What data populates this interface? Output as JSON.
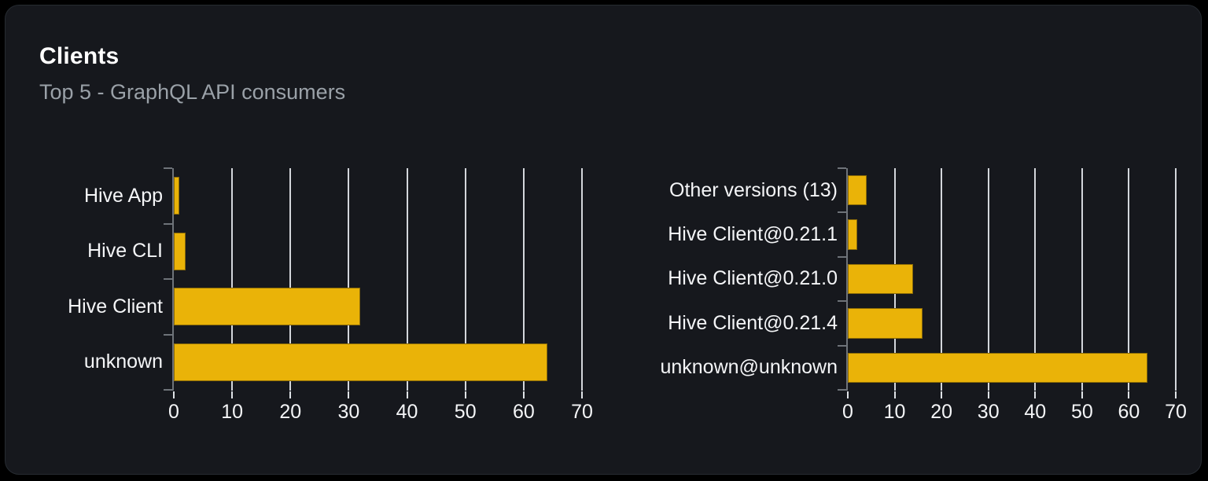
{
  "card": {
    "title": "Clients",
    "subtitle": "Top 5 - GraphQL API consumers"
  },
  "colors": {
    "bar": "#eab308",
    "bar_border": "#8a6a07",
    "card_background": "#16181d",
    "outer_background": "#000000",
    "gridline": "#e4e7eb",
    "axis": "#6e7379",
    "label_text": "#f4f5f7",
    "subtitle_text": "#9aa1a8",
    "title_text": "#ffffff"
  },
  "chart_data": [
    {
      "type": "bar",
      "orientation": "horizontal",
      "name": "clients-by-name",
      "categories": [
        "Hive App",
        "Hive CLI",
        "Hive Client",
        "unknown"
      ],
      "values": [
        1,
        2,
        32,
        64
      ],
      "title": "",
      "xlabel": "",
      "ylabel": "",
      "xlim": [
        0,
        70
      ],
      "xticks": [
        0,
        10,
        20,
        30,
        40,
        50,
        60,
        70
      ],
      "grid": true,
      "legend": false,
      "bar_color": "#eab308"
    },
    {
      "type": "bar",
      "orientation": "horizontal",
      "name": "clients-by-version",
      "categories": [
        "Other versions (13)",
        "Hive Client@0.21.1",
        "Hive Client@0.21.0",
        "Hive Client@0.21.4",
        "unknown@unknown"
      ],
      "values": [
        4,
        2,
        14,
        16,
        64
      ],
      "title": "",
      "xlabel": "",
      "ylabel": "",
      "xlim": [
        0,
        70
      ],
      "xticks": [
        0,
        10,
        20,
        30,
        40,
        50,
        60,
        70
      ],
      "grid": true,
      "legend": false,
      "bar_color": "#eab308"
    }
  ]
}
